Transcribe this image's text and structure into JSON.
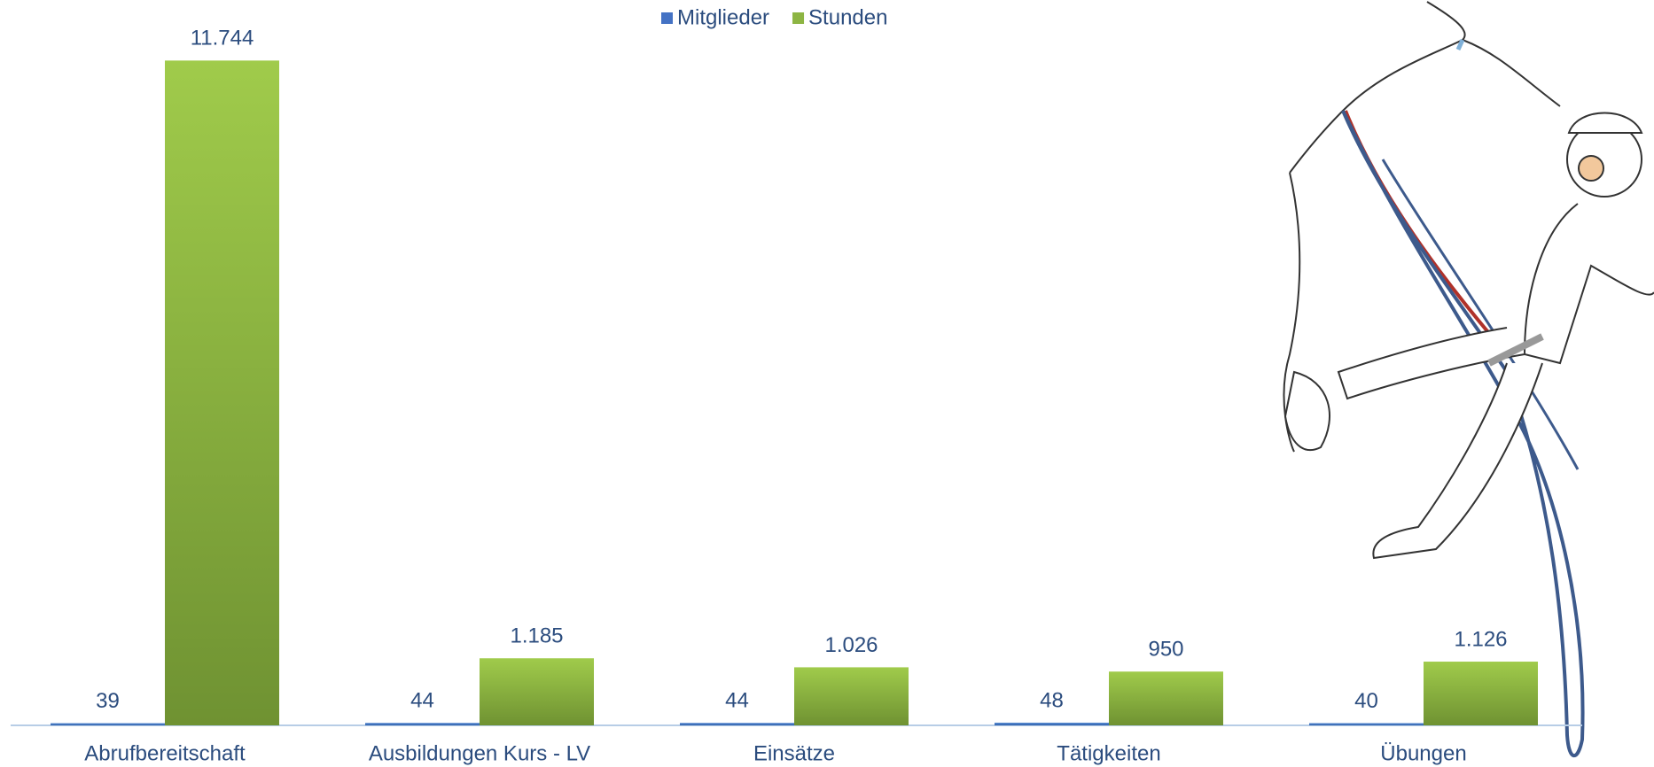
{
  "chart_data": {
    "type": "bar",
    "categories": [
      "Abrufbereitschaft",
      "Ausbildungen Kurs - LV",
      "Einsätze",
      "Tätigkeiten",
      "Übungen"
    ],
    "series": [
      {
        "name": "Mitglieder",
        "color": "#4472c4",
        "values": [
          39,
          44,
          44,
          48,
          40
        ]
      },
      {
        "name": "Stunden",
        "color": "#8db543",
        "values": [
          11744,
          1185,
          1026,
          950,
          1126
        ],
        "value_labels": [
          "11.744",
          "1.185",
          "1.026",
          "950",
          "1.126"
        ]
      }
    ],
    "ylim": [
      0,
      12000
    ],
    "legend": "top"
  }
}
